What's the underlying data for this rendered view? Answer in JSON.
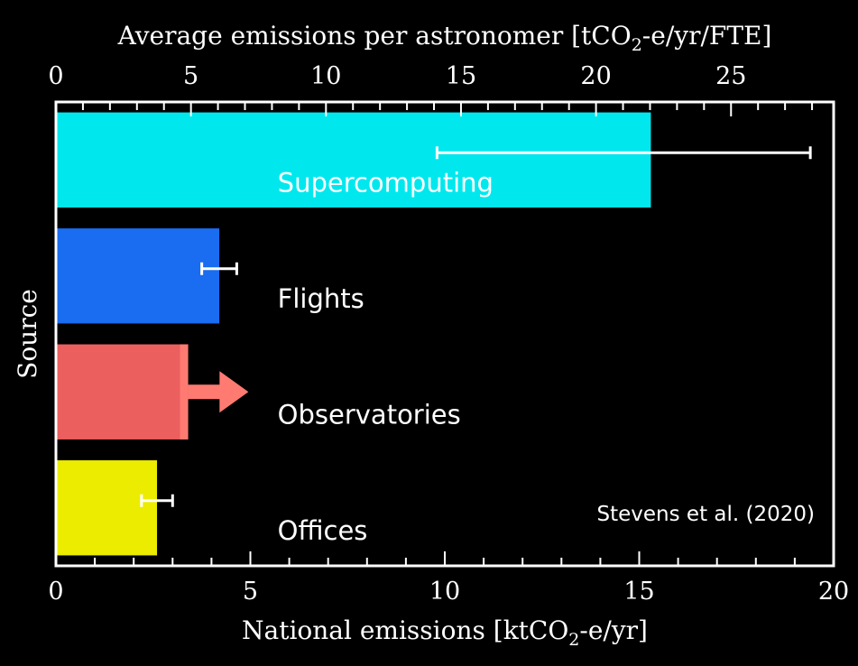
{
  "chart_data": {
    "type": "bar",
    "orientation": "horizontal",
    "categories": [
      "Supercomputing",
      "Flights",
      "Observatories",
      "Offices"
    ],
    "values": [
      15.3,
      4.2,
      3.4,
      2.6
    ],
    "error_low": [
      9.8,
      3.75,
      null,
      2.2
    ],
    "error_high": [
      19.4,
      4.65,
      null,
      3.0
    ],
    "lower_limit": [
      false,
      false,
      true,
      false
    ],
    "colors": [
      "#00e8ee",
      "#1a6cf0",
      "#ec5f5f",
      "#ecec00"
    ],
    "arrow_color": "#ff7b72",
    "xlabel_bottom_prefix": "National emissions [ktCO",
    "xlabel_bottom_sub": "2",
    "xlabel_bottom_suffix": "-e/yr]",
    "xlabel_top_prefix": "Average emissions per astronomer [tCO",
    "xlabel_top_sub": "2",
    "xlabel_top_suffix": "-e/yr/FTE]",
    "ylabel": "Source",
    "xlim": [
      0,
      20
    ],
    "xticks": [
      "0",
      "5",
      "10",
      "15",
      "20"
    ],
    "xlim_top": [
      0,
      28.8
    ],
    "xticks_top": [
      "0",
      "5",
      "10",
      "15",
      "20",
      "25"
    ],
    "annotation": "Stevens et al. (2020)",
    "grid": false
  }
}
